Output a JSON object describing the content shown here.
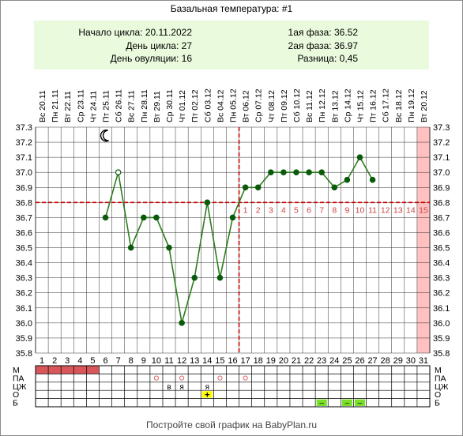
{
  "title": "Базальная температура: #1",
  "info": {
    "cycle_start": "Начало цикла: 20.11.2022",
    "cycle_day": "День цикла: 27",
    "ovulation_day": "День овуляции: 16",
    "phase1": "1ая фаза: 36.52",
    "phase2": "2ая фаза: 36.97",
    "difference": "Разница: 0,45"
  },
  "footer": "Постройте свой график на BabyPlan.ru",
  "colors": {
    "line": "#2e7d1e",
    "dot": "#0b5a0b",
    "guide": "#cc0000",
    "today": "#ffc0c0",
    "grid": "#333333",
    "menses": "#d9575a",
    "info_bg": "#eafadc",
    "mucus_mark": "#e06060",
    "test_yellow": "#ffff00",
    "test_green": "#7be02a"
  },
  "icons": {
    "sleep": "moon-icon"
  },
  "chart_data": {
    "type": "line",
    "title": "Базальная температура: #1",
    "ylim": [
      35.8,
      37.3
    ],
    "y_ticks": [
      "35.8",
      "35.9",
      "36.0",
      "36.1",
      "36.2",
      "36.3",
      "36.4",
      "36.5",
      "36.6",
      "36.7",
      "36.8",
      "36.9",
      "37.0",
      "37.1",
      "37.2",
      "37.3"
    ],
    "days": [
      1,
      2,
      3,
      4,
      5,
      6,
      7,
      8,
      9,
      10,
      11,
      12,
      13,
      14,
      15,
      16,
      17,
      18,
      19,
      20,
      21,
      22,
      23,
      24,
      25,
      26,
      27,
      28,
      29,
      30,
      31
    ],
    "dates": [
      "Вс 20.11",
      "Пн 21.11",
      "Вт 22.11",
      "Ср 23.11",
      "Чт 24.11",
      "Пт 25.11",
      "Сб 26.11",
      "Вс 27.11",
      "Пн 28.11",
      "Вт 29.11",
      "Ср 30.11",
      "Чт 01.12",
      "Пт 02.12",
      "Сб 03.12",
      "Вс 04.12",
      "Пн 05.12",
      "Вт 06.12",
      "Ср 07.12",
      "Чт 08.12",
      "Пт 09.12",
      "Сб 10.12",
      "Вс 11.12",
      "Пн 12.12",
      "Вт 13.12",
      "Ср 14.12",
      "Чт 15.12",
      "Пт 16.12",
      "Сб 17.12",
      "Вс 18.12",
      "Пн 19.12",
      "Вт 20.12"
    ],
    "series": [
      {
        "points": [
          {
            "day": 6,
            "value": 36.7
          },
          {
            "day": 7,
            "value": 37.0,
            "open": true
          },
          {
            "day": 8,
            "value": 36.5
          },
          {
            "day": 9,
            "value": 36.7
          },
          {
            "day": 10,
            "value": 36.7
          },
          {
            "day": 11,
            "value": 36.5
          },
          {
            "day": 12,
            "value": 36.0
          },
          {
            "day": 13,
            "value": 36.3
          },
          {
            "day": 14,
            "value": 36.8
          },
          {
            "day": 15,
            "value": 36.3
          },
          {
            "day": 16,
            "value": 36.7
          },
          {
            "day": 17,
            "value": 36.9
          },
          {
            "day": 18,
            "value": 36.9
          },
          {
            "day": 19,
            "value": 37.0
          },
          {
            "day": 20,
            "value": 37.0
          },
          {
            "day": 21,
            "value": 37.0
          },
          {
            "day": 22,
            "value": 37.0
          },
          {
            "day": 23,
            "value": 37.0
          },
          {
            "day": 24,
            "value": 36.9
          },
          {
            "day": 25,
            "value": 36.95
          },
          {
            "day": 26,
            "value": 37.1
          },
          {
            "day": 27,
            "value": 36.95
          }
        ]
      }
    ],
    "cover_line": 36.8,
    "ovulation_day": 16,
    "phase2_numbers": [
      "1",
      "2",
      "3",
      "4",
      "5",
      "6",
      "7",
      "8",
      "9",
      "10",
      "11",
      "12",
      "13",
      "14",
      "15"
    ],
    "highlight_day": 31,
    "sleep_marker_day": 6,
    "rows": {
      "labels": [
        "М",
        "ПА",
        "ЦЖ",
        "О",
        "Б"
      ],
      "menses_days": [
        1,
        2,
        3,
        4,
        5
      ],
      "pa_circle_days": [
        10,
        12,
        15,
        17
      ],
      "cervical": [
        {
          "day": 11,
          "text": "в"
        },
        {
          "day": 12,
          "text": "я"
        },
        {
          "day": 14,
          "text": "я"
        }
      ],
      "ovulation_test": [
        {
          "day": 14,
          "text": "+"
        }
      ],
      "pregnancy_test": [
        {
          "day": 23,
          "text": "–"
        },
        {
          "day": 25,
          "text": "–"
        },
        {
          "day": 26,
          "text": "–"
        }
      ]
    }
  }
}
